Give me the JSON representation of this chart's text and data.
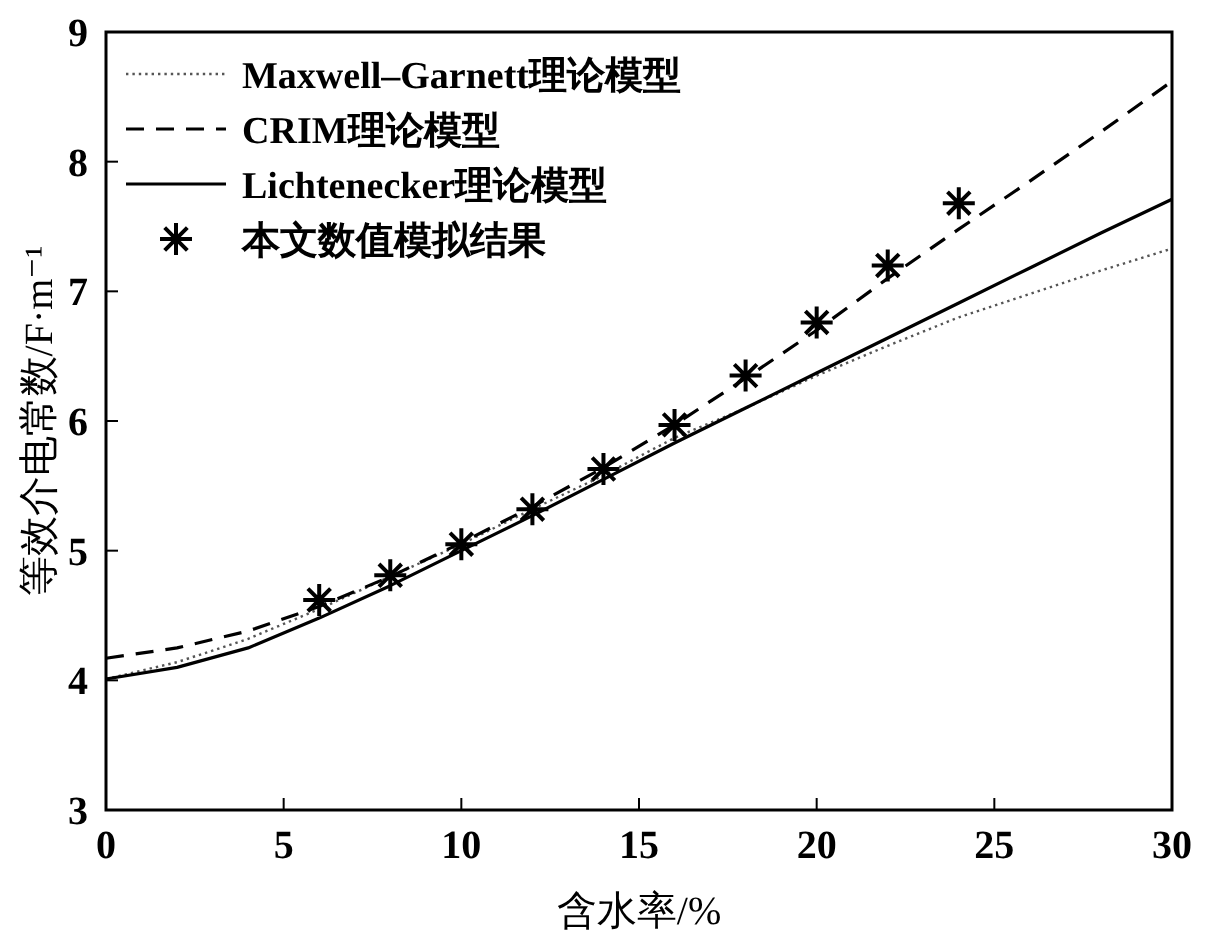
{
  "chart_data": {
    "type": "line",
    "xlabel": "含水率/%",
    "ylabel": "等效介电常数/F·m⁻¹",
    "x": [
      0,
      2,
      4,
      6,
      8,
      10,
      12,
      14,
      16,
      18,
      20,
      22,
      24,
      26,
      28,
      30
    ],
    "xlim": [
      0,
      30
    ],
    "ylim": [
      3,
      9
    ],
    "xticks": [
      0,
      5,
      10,
      15,
      20,
      25,
      30
    ],
    "yticks": [
      3,
      4,
      5,
      6,
      7,
      8,
      9
    ],
    "legend": "top left",
    "series": [
      {
        "name": "Maxwell–Garnett理论模型",
        "line_style": "dotted",
        "color": "#555555",
        "values": [
          4.01,
          4.14,
          4.32,
          4.55,
          4.8,
          5.05,
          5.32,
          5.58,
          5.87,
          6.1,
          6.35,
          6.58,
          6.8,
          6.98,
          7.16,
          7.33
        ]
      },
      {
        "name": "CRIM理论模型",
        "line_style": "dashed",
        "color": "#000000",
        "values": [
          4.17,
          4.25,
          4.38,
          4.57,
          4.8,
          5.06,
          5.34,
          5.64,
          5.97,
          6.33,
          6.7,
          7.1,
          7.48,
          7.85,
          8.23,
          8.62
        ]
      },
      {
        "name": "Lichtenecker理论模型",
        "line_style": "solid",
        "color": "#000000",
        "values": [
          4.01,
          4.1,
          4.25,
          4.48,
          4.73,
          5.0,
          5.27,
          5.55,
          5.83,
          6.1,
          6.37,
          6.64,
          6.91,
          7.18,
          7.45,
          7.71
        ]
      },
      {
        "name": "本文数值模拟结果",
        "type": "scatter",
        "marker": "cross",
        "color": "#000000",
        "x": [
          6,
          8,
          10,
          12,
          14,
          16,
          18,
          20,
          22,
          24
        ],
        "values": [
          4.62,
          4.81,
          5.05,
          5.32,
          5.63,
          5.97,
          6.35,
          6.76,
          7.2,
          7.68
        ]
      }
    ]
  }
}
